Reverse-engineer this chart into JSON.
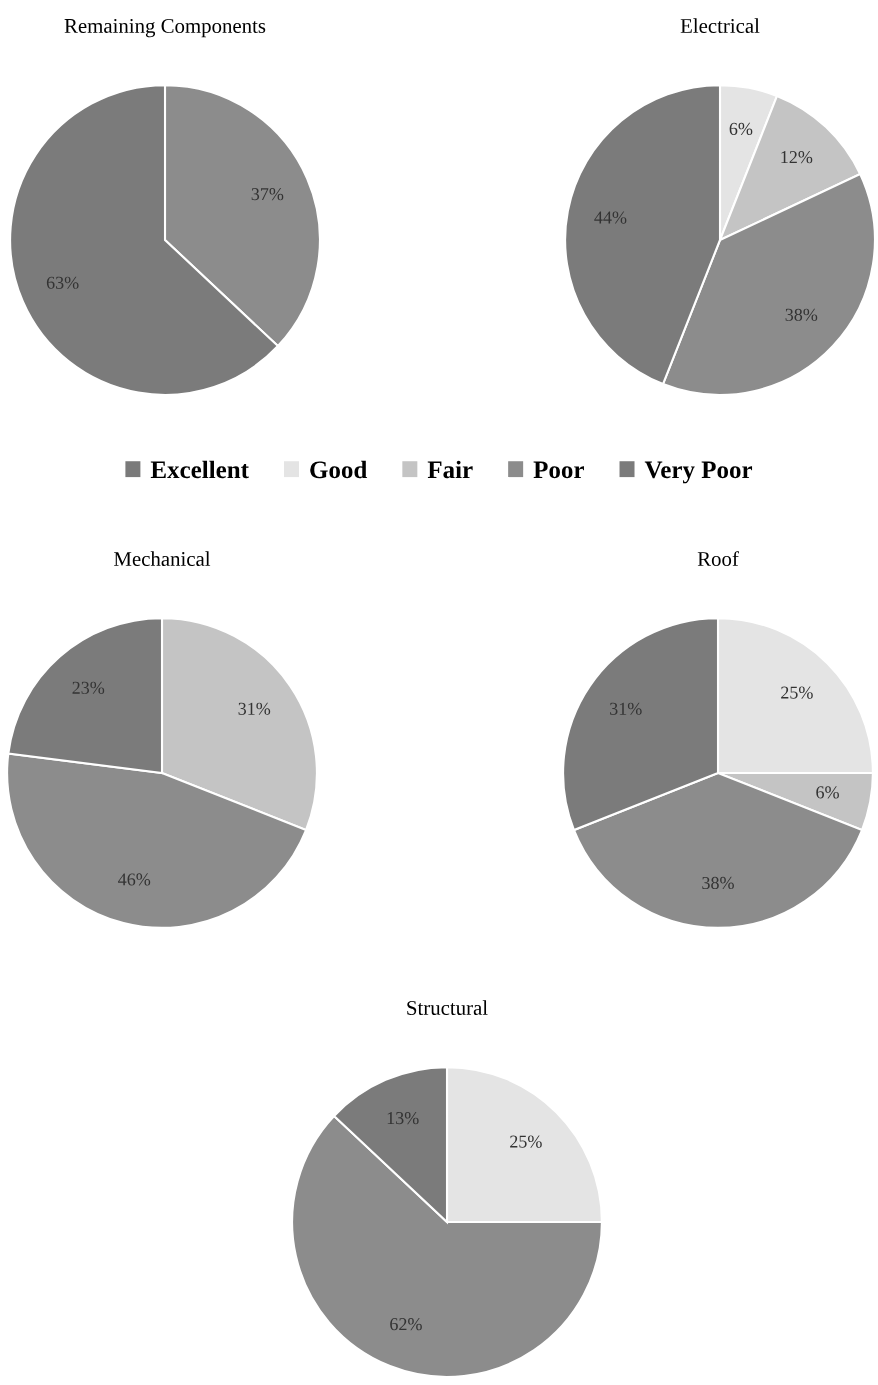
{
  "chart_data": [
    {
      "type": "pie",
      "title": "Remaining Components",
      "categories": [
        "Excellent",
        "Good",
        "Fair",
        "Poor",
        "Very Poor"
      ],
      "values": [
        0,
        0,
        0,
        37,
        63
      ],
      "colors": [
        "#7a7a7a",
        "#e4e4e4",
        "#c4c4c4",
        "#8c8c8c",
        "#7b7b7b"
      ],
      "value_labels": [
        null,
        null,
        null,
        "37%",
        "63%"
      ],
      "legend": "bottom"
    },
    {
      "type": "pie",
      "title": "Electrical",
      "categories": [
        null,
        null,
        null,
        null,
        null
      ],
      "values": [
        0,
        6,
        12,
        38,
        44
      ],
      "colors": [
        "#7a7a7a",
        "#e4e4e4",
        "#c4c4c4",
        "#8c8c8c",
        "#7b7b7b"
      ],
      "value_labels": [
        null,
        "6%",
        "12%",
        "38%",
        "44%"
      ]
    },
    {
      "type": "pie",
      "title": "Mechanical",
      "categories": [
        null,
        null,
        null,
        null,
        null
      ],
      "values": [
        0,
        0,
        31,
        46,
        23
      ],
      "colors": [
        "#7a7a7a",
        "#e4e4e4",
        "#c4c4c4",
        "#8c8c8c",
        "#7b7b7b"
      ],
      "value_labels": [
        null,
        null,
        "31%",
        "46%",
        "23%"
      ]
    },
    {
      "type": "pie",
      "title": "Roof",
      "categories": [
        null,
        null,
        null,
        null,
        null
      ],
      "values": [
        0,
        25,
        6,
        38,
        31
      ],
      "colors": [
        "#7a7a7a",
        "#e4e4e4",
        "#c4c4c4",
        "#8c8c8c",
        "#7b7b7b"
      ],
      "value_labels": [
        null,
        "25%",
        "6%",
        "38%",
        "31%"
      ]
    },
    {
      "type": "pie",
      "title": "Structural",
      "categories": [
        null,
        null,
        null,
        null,
        null
      ],
      "values": [
        0,
        25,
        0,
        62,
        13
      ],
      "colors": [
        "#7a7a7a",
        "#e4e4e4",
        "#c4c4c4",
        "#8c8c8c",
        "#7b7b7b"
      ],
      "value_labels": [
        null,
        "25%",
        null,
        "62%",
        "13%"
      ]
    }
  ]
}
